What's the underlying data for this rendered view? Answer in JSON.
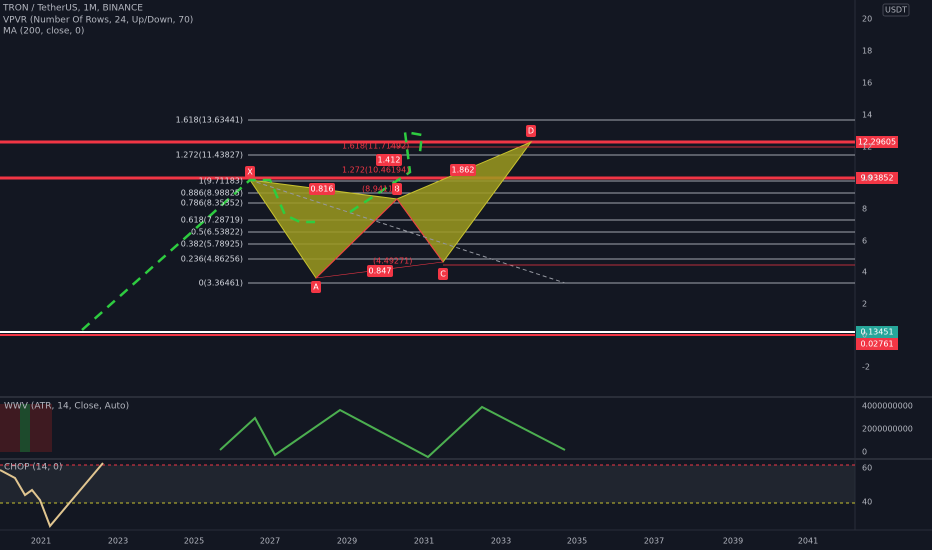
{
  "header": {
    "title": "TRON / TetherUS, 1M, BINANCE",
    "indicators": [
      "VPVR (Number Of Rows, 24, Up/Down, 70)",
      "MA (200, close, 0)"
    ]
  },
  "price_axis": {
    "currency": "USDT",
    "ticks": [
      "20",
      "18",
      "16",
      "14",
      "12",
      "10",
      "8",
      "6",
      "4",
      "2",
      "0",
      "-2"
    ],
    "labels": [
      "12.29605",
      "9.93852",
      "0.13451",
      "0.02761"
    ]
  },
  "fib_levels": [
    "1.618(13.63441)",
    "1.272(11.43827)",
    "1(9.71183)",
    "0.886(8.98825)",
    "0.786(8.35352)",
    "0.618(7.28719)",
    "0.5(6.53822)",
    "0.382(5.78925)",
    "0.236(4.86256)",
    "0(3.36461)"
  ],
  "pattern": {
    "points": [
      "X",
      "A",
      "B",
      "C",
      "D"
    ],
    "ratios": [
      "0.816",
      "0.847",
      "1.412",
      "1.862"
    ],
    "projections": [
      "1.618(11.71492)",
      "1.272(10.46194)",
      "(8.94113)",
      "(4.49271)"
    ]
  },
  "wwv": {
    "title": "WWV (ATR, 14, Close, Auto)",
    "ticks": [
      "4000000000",
      "2000000000",
      "0"
    ]
  },
  "chop": {
    "title": "CHOP (14, 0)",
    "ticks": [
      "60",
      "40"
    ]
  },
  "time_axis": [
    "2021",
    "2023",
    "2025",
    "2027",
    "2029",
    "2031",
    "2033",
    "2035",
    "2037",
    "2039",
    "2041"
  ]
}
